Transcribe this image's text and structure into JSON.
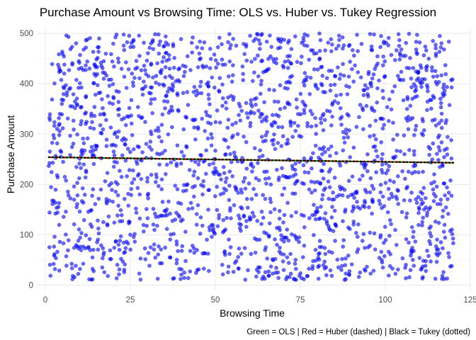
{
  "chart_data": {
    "type": "scatter",
    "title": "Purchase Amount vs Browsing Time: OLS vs. Huber vs. Tukey Regression",
    "xlabel": "Browsing Time",
    "ylabel": "Purchase Amount",
    "caption": "Green = OLS | Red = Huber (dashed) | Black = Tukey (dotted)",
    "xlim": [
      -2.5,
      125
    ],
    "ylim": [
      -12,
      510
    ],
    "x_ticks": [
      0,
      25,
      50,
      75,
      100,
      125
    ],
    "y_ticks": [
      0,
      100,
      200,
      300,
      400,
      500
    ],
    "x_tick_labels": [
      "0",
      "25",
      "50",
      "75",
      "100",
      "125"
    ],
    "y_tick_labels": [
      "0",
      "100",
      "200",
      "300",
      "400",
      "500"
    ],
    "grid": true,
    "points": {
      "color": "#0000ff",
      "opacity": 0.6,
      "count": 2000,
      "x_range": [
        1,
        120
      ],
      "y_range": [
        10,
        500
      ],
      "description": "Approximately uniform cloud of points over the x and y ranges"
    },
    "series": [
      {
        "name": "OLS",
        "color": "#00cc00",
        "style": "solid",
        "x": [
          1,
          120
        ],
        "y": [
          254,
          243
        ]
      },
      {
        "name": "Huber",
        "color": "#ff0000",
        "style": "dashed",
        "x": [
          1,
          120
        ],
        "y": [
          254,
          243
        ]
      },
      {
        "name": "Tukey",
        "color": "#000000",
        "style": "dotted",
        "x": [
          1,
          120
        ],
        "y": [
          254,
          243
        ]
      }
    ]
  }
}
